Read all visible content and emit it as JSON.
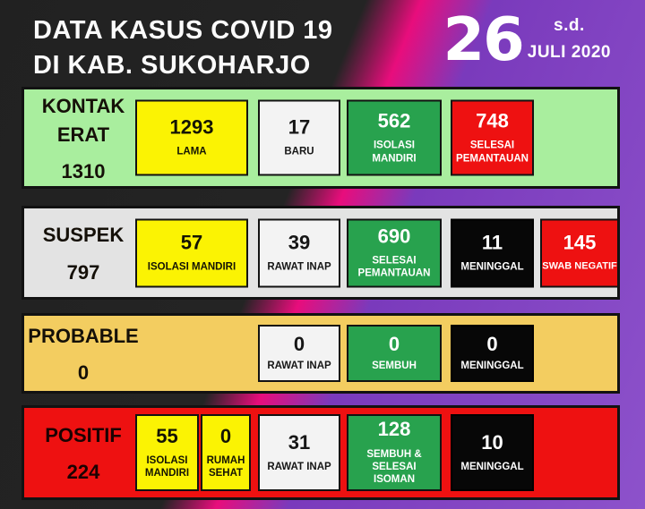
{
  "header": {
    "title_line1": "DATA KASUS COVID 19",
    "title_line2": "DI KAB. SUKOHARJO",
    "date": {
      "day": "26",
      "prefix": "s.d.",
      "month_year": "JULI 2020"
    }
  },
  "panels": [
    {
      "label": "KONTAK ERAT",
      "total": "1310",
      "cards": [
        {
          "value": "1293",
          "label": "LAMA",
          "color": "yellow"
        },
        {
          "value": "17",
          "label": "BARU",
          "color": "white"
        },
        {
          "value": "562",
          "label": "ISOLASI MANDIRI",
          "color": "green"
        },
        {
          "value": "748",
          "label": "SELESAI PEMANTAUAN",
          "color": "red"
        }
      ]
    },
    {
      "label": "SUSPEK",
      "total": "797",
      "cards": [
        {
          "value": "57",
          "label": "ISOLASI MANDIRI",
          "color": "yellow"
        },
        {
          "value": "39",
          "label": "RAWAT INAP",
          "color": "white"
        },
        {
          "value": "690",
          "label": "SELESAI PEMANTAUAN",
          "color": "green"
        },
        {
          "value": "11",
          "label": "MENINGGAL",
          "color": "black"
        },
        {
          "value": "145",
          "label": "SWAB NEGATIF",
          "color": "red"
        }
      ]
    },
    {
      "label": "PROBABLE",
      "total": "0",
      "cards": [
        {
          "value": "0",
          "label": "RAWAT INAP",
          "color": "white"
        },
        {
          "value": "0",
          "label": "SEMBUH",
          "color": "green"
        },
        {
          "value": "0",
          "label": "MENINGGAL",
          "color": "black"
        }
      ]
    },
    {
      "label": "POSITIF",
      "total": "224",
      "cards": [
        {
          "value": "55",
          "label": "ISOLASI MANDIRI",
          "color": "yellow"
        },
        {
          "value": "0",
          "label": "RUMAH SEHAT",
          "color": "yellow"
        },
        {
          "value": "31",
          "label": "RAWAT INAP",
          "color": "white"
        },
        {
          "value": "128",
          "label": "SEMBUH & SELESAI ISOMAN",
          "color": "green"
        },
        {
          "value": "10",
          "label": "MENINGGAL",
          "color": "black"
        }
      ]
    }
  ],
  "colors": {
    "background_dark": "#232323",
    "background_magenta": "#e80d7c",
    "background_purple": "#8d52cb",
    "panel_kontak_erat": "#a9ee9e",
    "panel_suspek": "#e3e3e3",
    "panel_probable": "#f3cd60",
    "panel_positif": "#ee1111",
    "card_yellow": "#fbf303",
    "card_white": "#f3f3f3",
    "card_green": "#28a24e",
    "card_black": "#070707",
    "card_red": "#ee1111",
    "text_light": "#ffffff",
    "text_dark": "#141414"
  },
  "chart_data": {
    "type": "table",
    "title": "DATA KASUS COVID 19 DI KAB. SUKOHARJO s.d. 26 JULI 2020",
    "rows": [
      {
        "category": "KONTAK ERAT",
        "total": 1310,
        "breakdown": {
          "LAMA": 1293,
          "BARU": 17,
          "ISOLASI MANDIRI": 562,
          "SELESAI PEMANTAUAN": 748
        }
      },
      {
        "category": "SUSPEK",
        "total": 797,
        "breakdown": {
          "ISOLASI MANDIRI": 57,
          "RAWAT INAP": 39,
          "SELESAI PEMANTAUAN": 690,
          "MENINGGAL": 11,
          "SWAB NEGATIF": 145
        }
      },
      {
        "category": "PROBABLE",
        "total": 0,
        "breakdown": {
          "RAWAT INAP": 0,
          "SEMBUH": 0,
          "MENINGGAL": 0
        }
      },
      {
        "category": "POSITIF",
        "total": 224,
        "breakdown": {
          "ISOLASI MANDIRI": 55,
          "RUMAH SEHAT": 0,
          "RAWAT INAP": 31,
          "SEMBUH & SELESAI ISOMAN": 128,
          "MENINGGAL": 10
        }
      }
    ]
  }
}
